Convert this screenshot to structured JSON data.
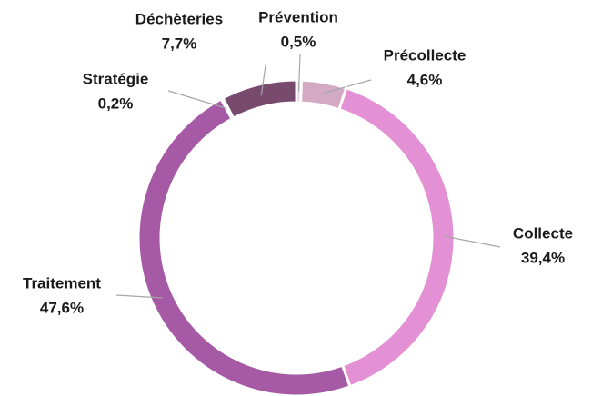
{
  "chart_data": {
    "type": "donut",
    "categories": [
      "Prévention",
      "Précollecte",
      "Collecte",
      "Traitement",
      "Stratégie",
      "Déchèteries"
    ],
    "values": [
      0.5,
      4.6,
      39.4,
      47.6,
      0.2,
      7.7
    ],
    "value_labels": [
      "0,5%",
      "4,6%",
      "39,4%",
      "47,6%",
      "0,2%",
      "7,7%"
    ],
    "colors": [
      "#e9d3e2",
      "#d4a9c4",
      "#e390d4",
      "#a65aa6",
      "#8a5a82",
      "#774a6e"
    ]
  }
}
